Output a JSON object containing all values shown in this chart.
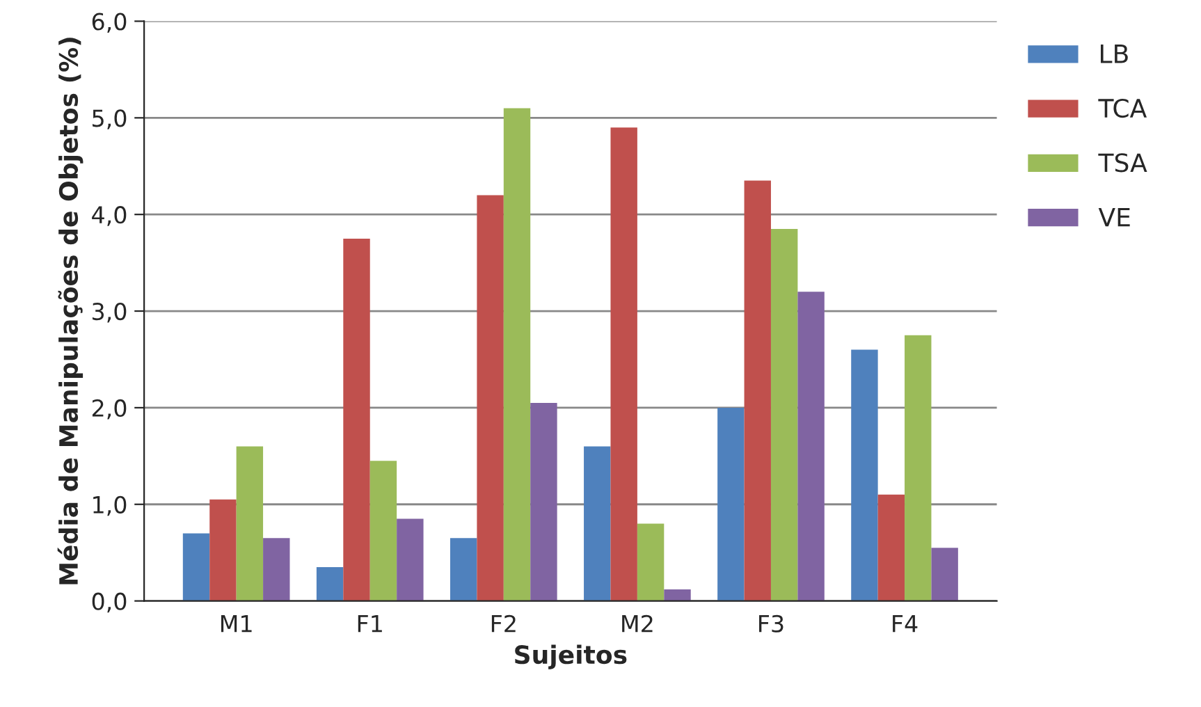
{
  "chart_data": {
    "type": "bar",
    "xlabel": "Sujeitos",
    "ylabel": "Média de Manipulações de Objetos (%)",
    "categories": [
      "M1",
      "F1",
      "F2",
      "M2",
      "F3",
      "F4"
    ],
    "series": [
      {
        "name": "LB",
        "color": "#4f81bd",
        "values": [
          0.7,
          0.35,
          0.65,
          1.6,
          2.0,
          2.6
        ]
      },
      {
        "name": "TCA",
        "color": "#c0504d",
        "values": [
          1.05,
          3.75,
          4.2,
          4.9,
          4.35,
          1.1
        ]
      },
      {
        "name": "TSA",
        "color": "#9bbb59",
        "values": [
          1.6,
          1.45,
          5.1,
          0.8,
          3.85,
          2.75
        ]
      },
      {
        "name": "VE",
        "color": "#8064a2",
        "values": [
          0.65,
          0.85,
          2.05,
          0.12,
          3.2,
          0.55
        ]
      }
    ],
    "ylim": [
      0,
      6
    ],
    "yticks": [
      {
        "value": 0,
        "label": "0,0"
      },
      {
        "value": 1,
        "label": "1,0"
      },
      {
        "value": 2,
        "label": "2,0"
      },
      {
        "value": 3,
        "label": "3,0"
      },
      {
        "value": 4,
        "label": "4,0"
      },
      {
        "value": 5,
        "label": "5,0"
      },
      {
        "value": 6,
        "label": "6,0"
      }
    ],
    "grid": "y",
    "legend": "top right"
  }
}
